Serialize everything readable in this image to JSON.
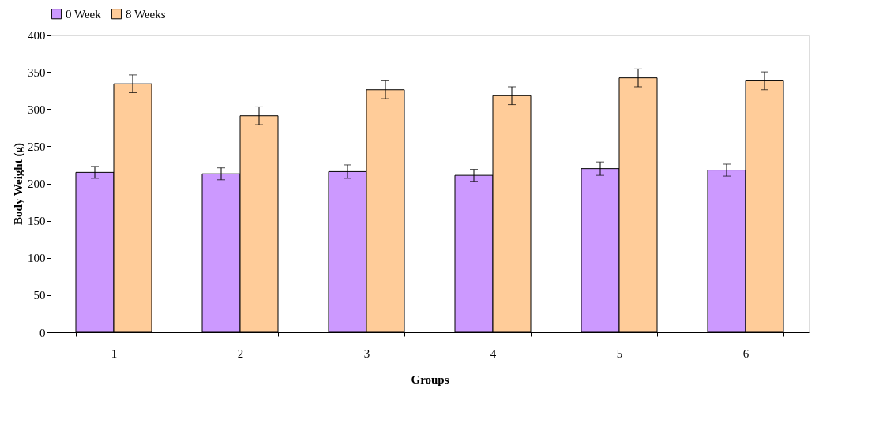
{
  "chart_data": {
    "type": "bar",
    "xlabel": "Groups",
    "ylabel": "Body Weight (g)",
    "categories": [
      "1",
      "2",
      "3",
      "4",
      "5",
      "6"
    ],
    "series": [
      {
        "name": "0 Week",
        "color": "#cc99ff",
        "values": [
          215,
          213,
          216,
          211,
          220,
          218
        ],
        "errors": [
          8,
          8,
          9,
          8,
          9,
          8
        ]
      },
      {
        "name": "8 Weeks",
        "color": "#ffcc99",
        "values": [
          334,
          291,
          326,
          318,
          342,
          338
        ],
        "errors": [
          12,
          12,
          12,
          12,
          12,
          12
        ]
      }
    ],
    "ylim": [
      0,
      400
    ],
    "yticks": [
      0,
      50,
      100,
      150,
      200,
      250,
      300,
      350,
      400
    ],
    "grid": false,
    "legend": "top"
  }
}
